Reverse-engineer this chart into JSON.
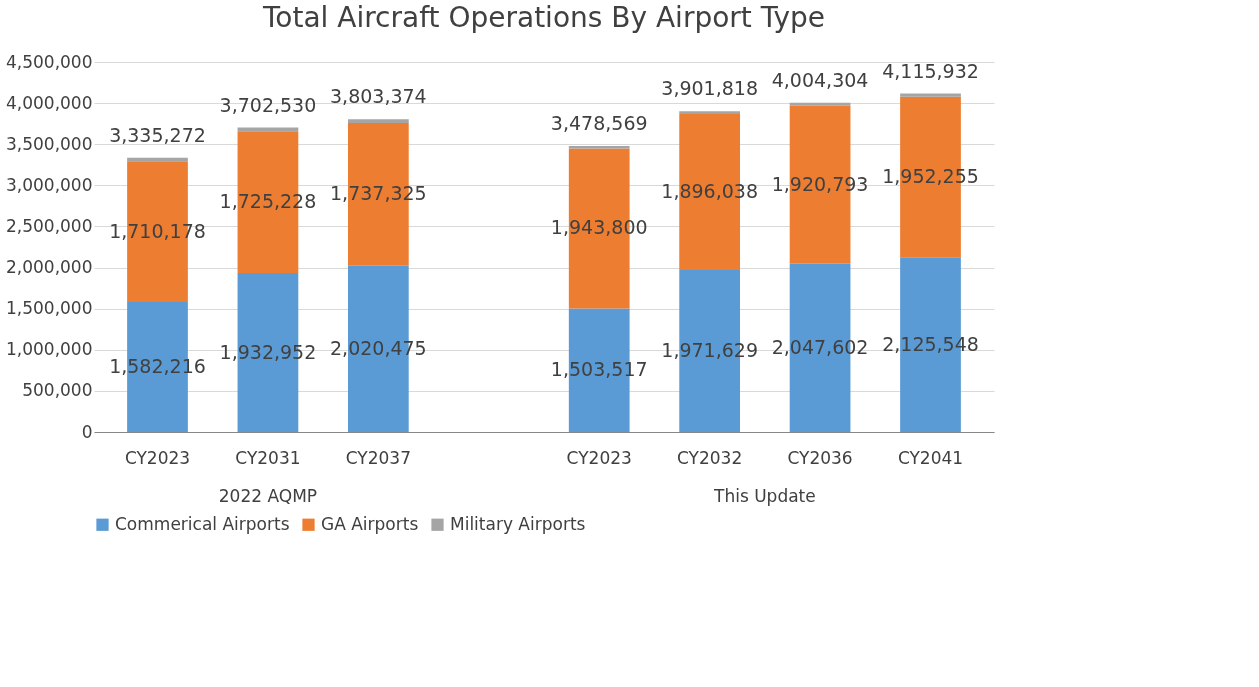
{
  "chart_data": {
    "type": "bar",
    "title": "Total Aircraft Operations By Airport Type",
    "stacked": true,
    "categories": [
      "CY2023",
      "CY2031",
      "CY2037",
      null,
      "CY2023",
      "CY2032",
      "CY2036",
      "CY2041"
    ],
    "series": [
      {
        "name": "Commerical Airports",
        "color": "#5b9bd5",
        "values": [
          1582216,
          1932952,
          2020475,
          null,
          1503517,
          1971629,
          2047602,
          2125548
        ],
        "value_labels": [
          "1,582,216",
          "1,932,952",
          "2,020,475",
          null,
          "1,503,517",
          "1,971,629",
          "2,047,602",
          "2,125,548"
        ]
      },
      {
        "name": "GA Airports",
        "color": "#ed7d31",
        "values": [
          1710178,
          1725228,
          1737325,
          null,
          1943800,
          1896038,
          1920793,
          1952255
        ],
        "value_labels": [
          "1,710,178",
          "1,725,228",
          "1,737,325",
          null,
          "1,943,800",
          "1,896,038",
          "1,920,793",
          "1,952,255"
        ]
      },
      {
        "name": "Military Airports",
        "color": "#a5a5a5",
        "values": [
          42878,
          44350,
          45574,
          null,
          31252,
          34151,
          35909,
          38129
        ]
      }
    ],
    "totals": [
      "3,335,272",
      "3,702,530",
      "3,803,374",
      null,
      "3,478,569",
      "3,901,818",
      "4,004,304",
      "4,115,932"
    ],
    "ylim": [
      0,
      4500000
    ],
    "yticks": [
      0,
      {
        "value": 500000,
        "label": "500,000"
      },
      {
        "value": 1000000,
        "label": "1,000,000"
      },
      {
        "value": 1500000,
        "label": "1,500,000"
      },
      {
        "value": 2000000,
        "label": "2,000,000"
      },
      {
        "value": 2500000,
        "label": "2,500,000"
      },
      {
        "value": 3000000,
        "label": "3,000,000"
      },
      {
        "value": 3500000,
        "label": "3,500,000"
      },
      {
        "value": 4000000,
        "label": "4,000,000"
      },
      {
        "value": 4500000,
        "label": "4,500,000"
      }
    ],
    "grid": "y",
    "legend": "bottom",
    "annotations": [
      "2022 AQMP",
      "This Update"
    ]
  }
}
